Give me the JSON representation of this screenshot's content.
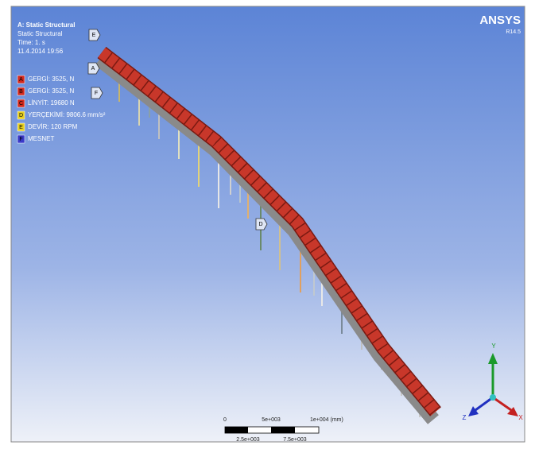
{
  "header": {
    "title": "A: Static Structural",
    "subtitle": "Static Structural",
    "time": "Time: 1. s",
    "date": "11.4.2014 19:56"
  },
  "legend": {
    "items": [
      {
        "key": "A",
        "label": "GERGİ: 3525, N"
      },
      {
        "key": "B",
        "label": "GERGİ: 3525, N"
      },
      {
        "key": "C",
        "label": "LİNYİT: 19680 N"
      },
      {
        "key": "D",
        "label": "YERÇEKİMİ: 9806.6 mm/s²"
      },
      {
        "key": "E",
        "label": "DEVİR: 120 RPM"
      },
      {
        "key": "F",
        "label": "MESNET"
      }
    ]
  },
  "logo": {
    "name": "ANSYS",
    "version": "R14.5"
  },
  "model_markers": [
    "E",
    "A",
    "F",
    "D"
  ],
  "scale_bar": {
    "top": [
      "0",
      "5e+003",
      "1e+004 (mm)"
    ],
    "bottom": [
      "2.5e+003",
      "7.5e+003"
    ]
  },
  "triad": {
    "y": "Y",
    "z": "Z",
    "x": "X"
  }
}
